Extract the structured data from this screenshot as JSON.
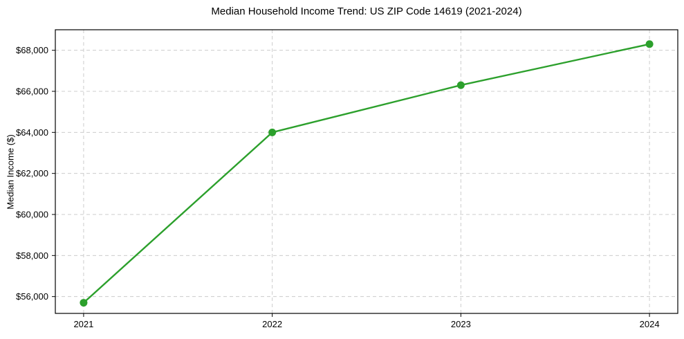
{
  "chart_data": {
    "type": "line",
    "title": "Median Household Income Trend: US ZIP Code 14619 (2021-2024)",
    "xlabel": "",
    "ylabel": "Median Income ($)",
    "x": [
      2021,
      2022,
      2023,
      2024
    ],
    "values": [
      55700,
      64000,
      66300,
      68300
    ],
    "xlim": [
      2020.85,
      2024.15
    ],
    "ylim": [
      55180,
      69000
    ],
    "xticks": [
      2021,
      2022,
      2023,
      2024
    ],
    "xtick_labels": [
      "2021",
      "2022",
      "2023",
      "2024"
    ],
    "yticks": [
      56000,
      58000,
      60000,
      62000,
      64000,
      66000,
      68000
    ],
    "ytick_labels": [
      "$56,000",
      "$58,000",
      "$60,000",
      "$62,000",
      "$64,000",
      "$66,000",
      "$68,000"
    ],
    "grid": true,
    "grid_style": "dashed",
    "legend": "none",
    "colors": {
      "line": "#2ca02c",
      "marker": "#2ca02c",
      "grid": "#cccccc",
      "spine": "#000000",
      "text": "#000000",
      "background": "#ffffff"
    }
  }
}
